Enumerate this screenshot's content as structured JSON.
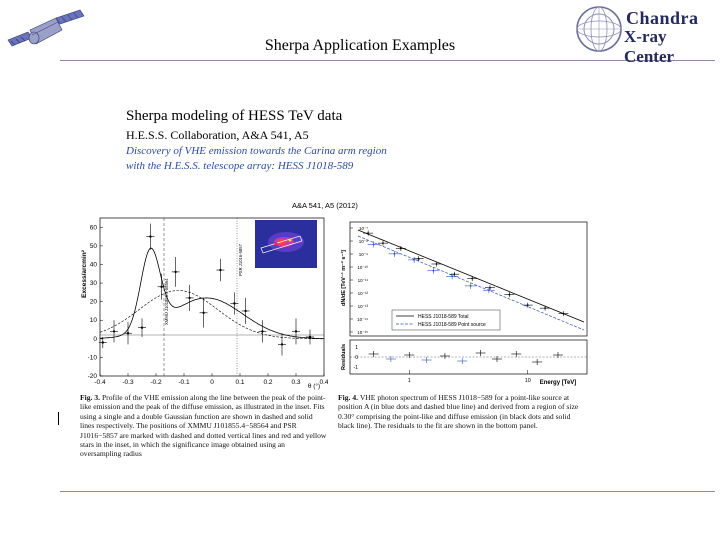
{
  "header": {
    "title": "Sherpa Application Examples",
    "logo": {
      "name": "Chandra",
      "subtitle": "X-ray Center"
    }
  },
  "content": {
    "heading": "Sherpa modeling of  HESS TeV data",
    "citation": "H.E.S.S. Collaboration, A&A 541, A5",
    "paper_title_line1": "Discovery of VHE emission towards the Carina arm region",
    "paper_title_line2": "with the H.E.S.S. telescope array: HESS J1018-589"
  },
  "figure": {
    "journal_ref": "A&A 541, A5 (2012)",
    "fig3": {
      "ylabel": "Excess/arcmin²",
      "xlabel": "θ (°)",
      "yticks": [
        "60",
        "50",
        "40",
        "30",
        "20",
        "10",
        "0",
        "-10",
        "-20"
      ],
      "xticks": [
        "-0.4",
        "-0.3",
        "-0.2",
        "-0.1",
        "0",
        "0.1",
        "0.2",
        "0.3",
        "0.4"
      ],
      "annot_left": "XMMU J101855.4-58564",
      "annot_right": "PSR J1016-5857",
      "caption_label": "Fig. 3.",
      "caption": "Profile of the VHE emission along the line between the peak of the point-like emission and the peak of the diffuse emission, as illustrated in the inset. Fits using a single and a double Gaussian function are shown in dashed and solid lines respectively. The positions of XMMU J101855.4−58564 and PSR J1016−5857 are marked with dashed and dotted vertical lines and red and yellow stars in the inset, in which the significance image obtained using an oversampling radius"
    },
    "fig4": {
      "ylabel": "dN/dE [TeV⁻¹ m⁻² s⁻¹]",
      "resid_label": "Residuals",
      "xlabel": "Energy [TeV]",
      "yticks": [
        "10⁻⁷",
        "10⁻⁸",
        "10⁻⁹",
        "10⁻¹⁰",
        "10⁻¹¹",
        "10⁻¹²",
        "10⁻¹³",
        "10⁻¹⁴",
        "10⁻¹⁵"
      ],
      "resid_ticks": [
        "1",
        "0",
        "-1"
      ],
      "xticks": [
        "1",
        "10"
      ],
      "legend": [
        "HESS J1018-589 Total",
        "HESS J1018-589 Point source"
      ],
      "caption_label": "Fig. 4.",
      "caption": "VHE photon spectrum of HESS J1018−589 for a point-like source at position A (in blue dots and dashed blue line) and derived from a region of size 0.30° comprising the point-like and diffuse emission (in black dots and solid black line). The residuals to the fit are shown in the bottom panel."
    }
  },
  "colors": {
    "rule": "#8a8aa8",
    "logo": "#242a5e",
    "italic_title": "#2a4ca0"
  }
}
